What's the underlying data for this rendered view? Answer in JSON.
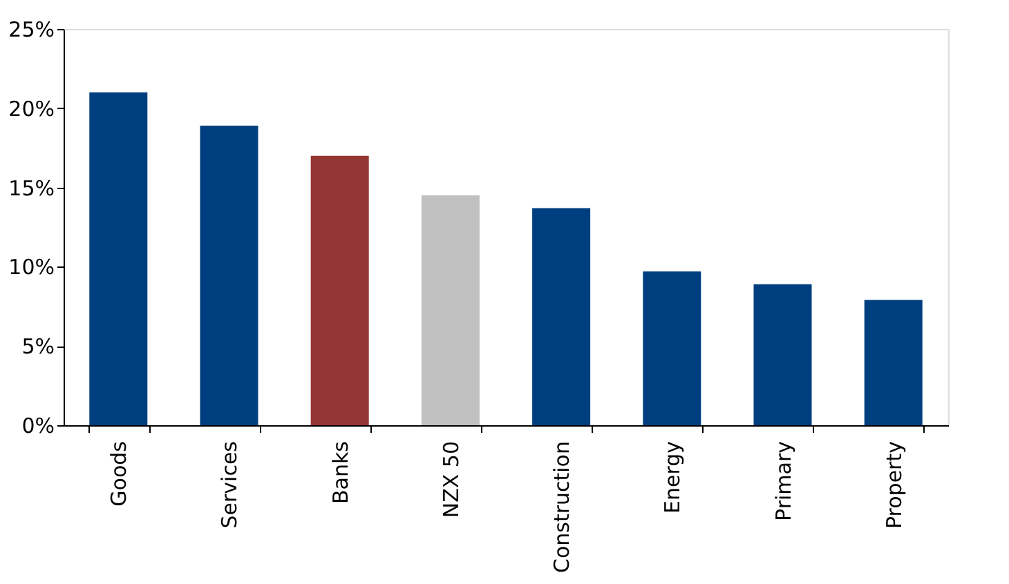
{
  "chart_data": {
    "type": "bar",
    "categories": [
      "Goods",
      "Services",
      "Banks",
      "NZX 50",
      "Construction",
      "Energy",
      "Primary",
      "Property"
    ],
    "values": [
      21.0,
      18.9,
      17.0,
      14.5,
      13.7,
      9.7,
      8.9,
      7.9
    ],
    "colors": [
      "#003f7f",
      "#003f7f",
      "#943634",
      "#c0c0c0",
      "#003f7f",
      "#003f7f",
      "#003f7f",
      "#003f7f"
    ],
    "ylim": [
      0,
      25
    ],
    "yticks": [
      {
        "value": 0,
        "label": "0%"
      },
      {
        "value": 5,
        "label": "5%"
      },
      {
        "value": 10,
        "label": "10%"
      },
      {
        "value": 15,
        "label": "15%"
      },
      {
        "value": 20,
        "label": "20%"
      },
      {
        "value": 25,
        "label": "25%"
      }
    ],
    "grid": false
  }
}
